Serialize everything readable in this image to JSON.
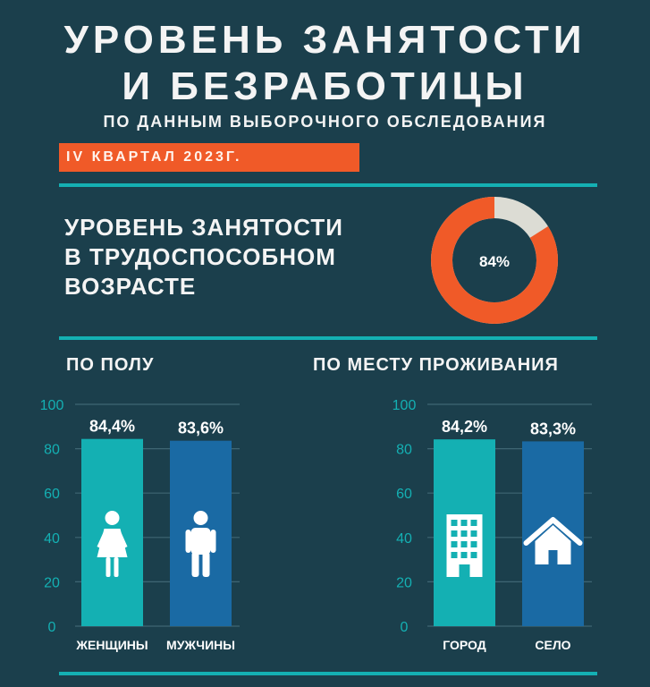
{
  "header": {
    "title_line1": "УРОВЕНЬ ЗАНЯТОСТИ",
    "title_line2": "И БЕЗРАБОТИЦЫ",
    "subtitle": "ПО ДАННЫМ ВЫБОРОЧНОГО ОБСЛЕДОВАНИЯ",
    "period": "IV КВАРТАЛ 2023Г."
  },
  "donut": {
    "title_lines": [
      "УРОВЕНЬ ЗАНЯТОСТИ",
      "В ТРУДОСПОСОБНОМ",
      "ВОЗРАСТЕ"
    ],
    "label": "84%",
    "value": 84,
    "color_value": "#f05a28",
    "color_rest": "#dcdcd4"
  },
  "sections": {
    "by_gender": "ПО ПОЛУ",
    "by_residence": "ПО МЕСТУ ПРОЖИВАНИЯ"
  },
  "chart_data": [
    {
      "type": "bar",
      "categories": [
        "ЖЕНЩИНЫ",
        "МУЖЧИНЫ"
      ],
      "values": [
        84.4,
        83.6
      ],
      "value_labels": [
        "84,4%",
        "83,6%"
      ],
      "colors": [
        "#14b0b3",
        "#1a6aa4"
      ],
      "icons": [
        "female-person-icon",
        "male-person-icon"
      ],
      "yticks": [
        "0",
        "20",
        "40",
        "60",
        "80",
        "100"
      ],
      "ylim": [
        0,
        100
      ],
      "grid": true
    },
    {
      "type": "bar",
      "categories": [
        "ГОРОД",
        "СЕЛО"
      ],
      "values": [
        84.2,
        83.3
      ],
      "value_labels": [
        "84,2%",
        "83,3%"
      ],
      "colors": [
        "#14b0b3",
        "#1a6aa4"
      ],
      "icons": [
        "building-icon",
        "house-icon"
      ],
      "yticks": [
        "0",
        "20",
        "40",
        "60",
        "80",
        "100"
      ],
      "ylim": [
        0,
        100
      ],
      "grid": true
    }
  ]
}
